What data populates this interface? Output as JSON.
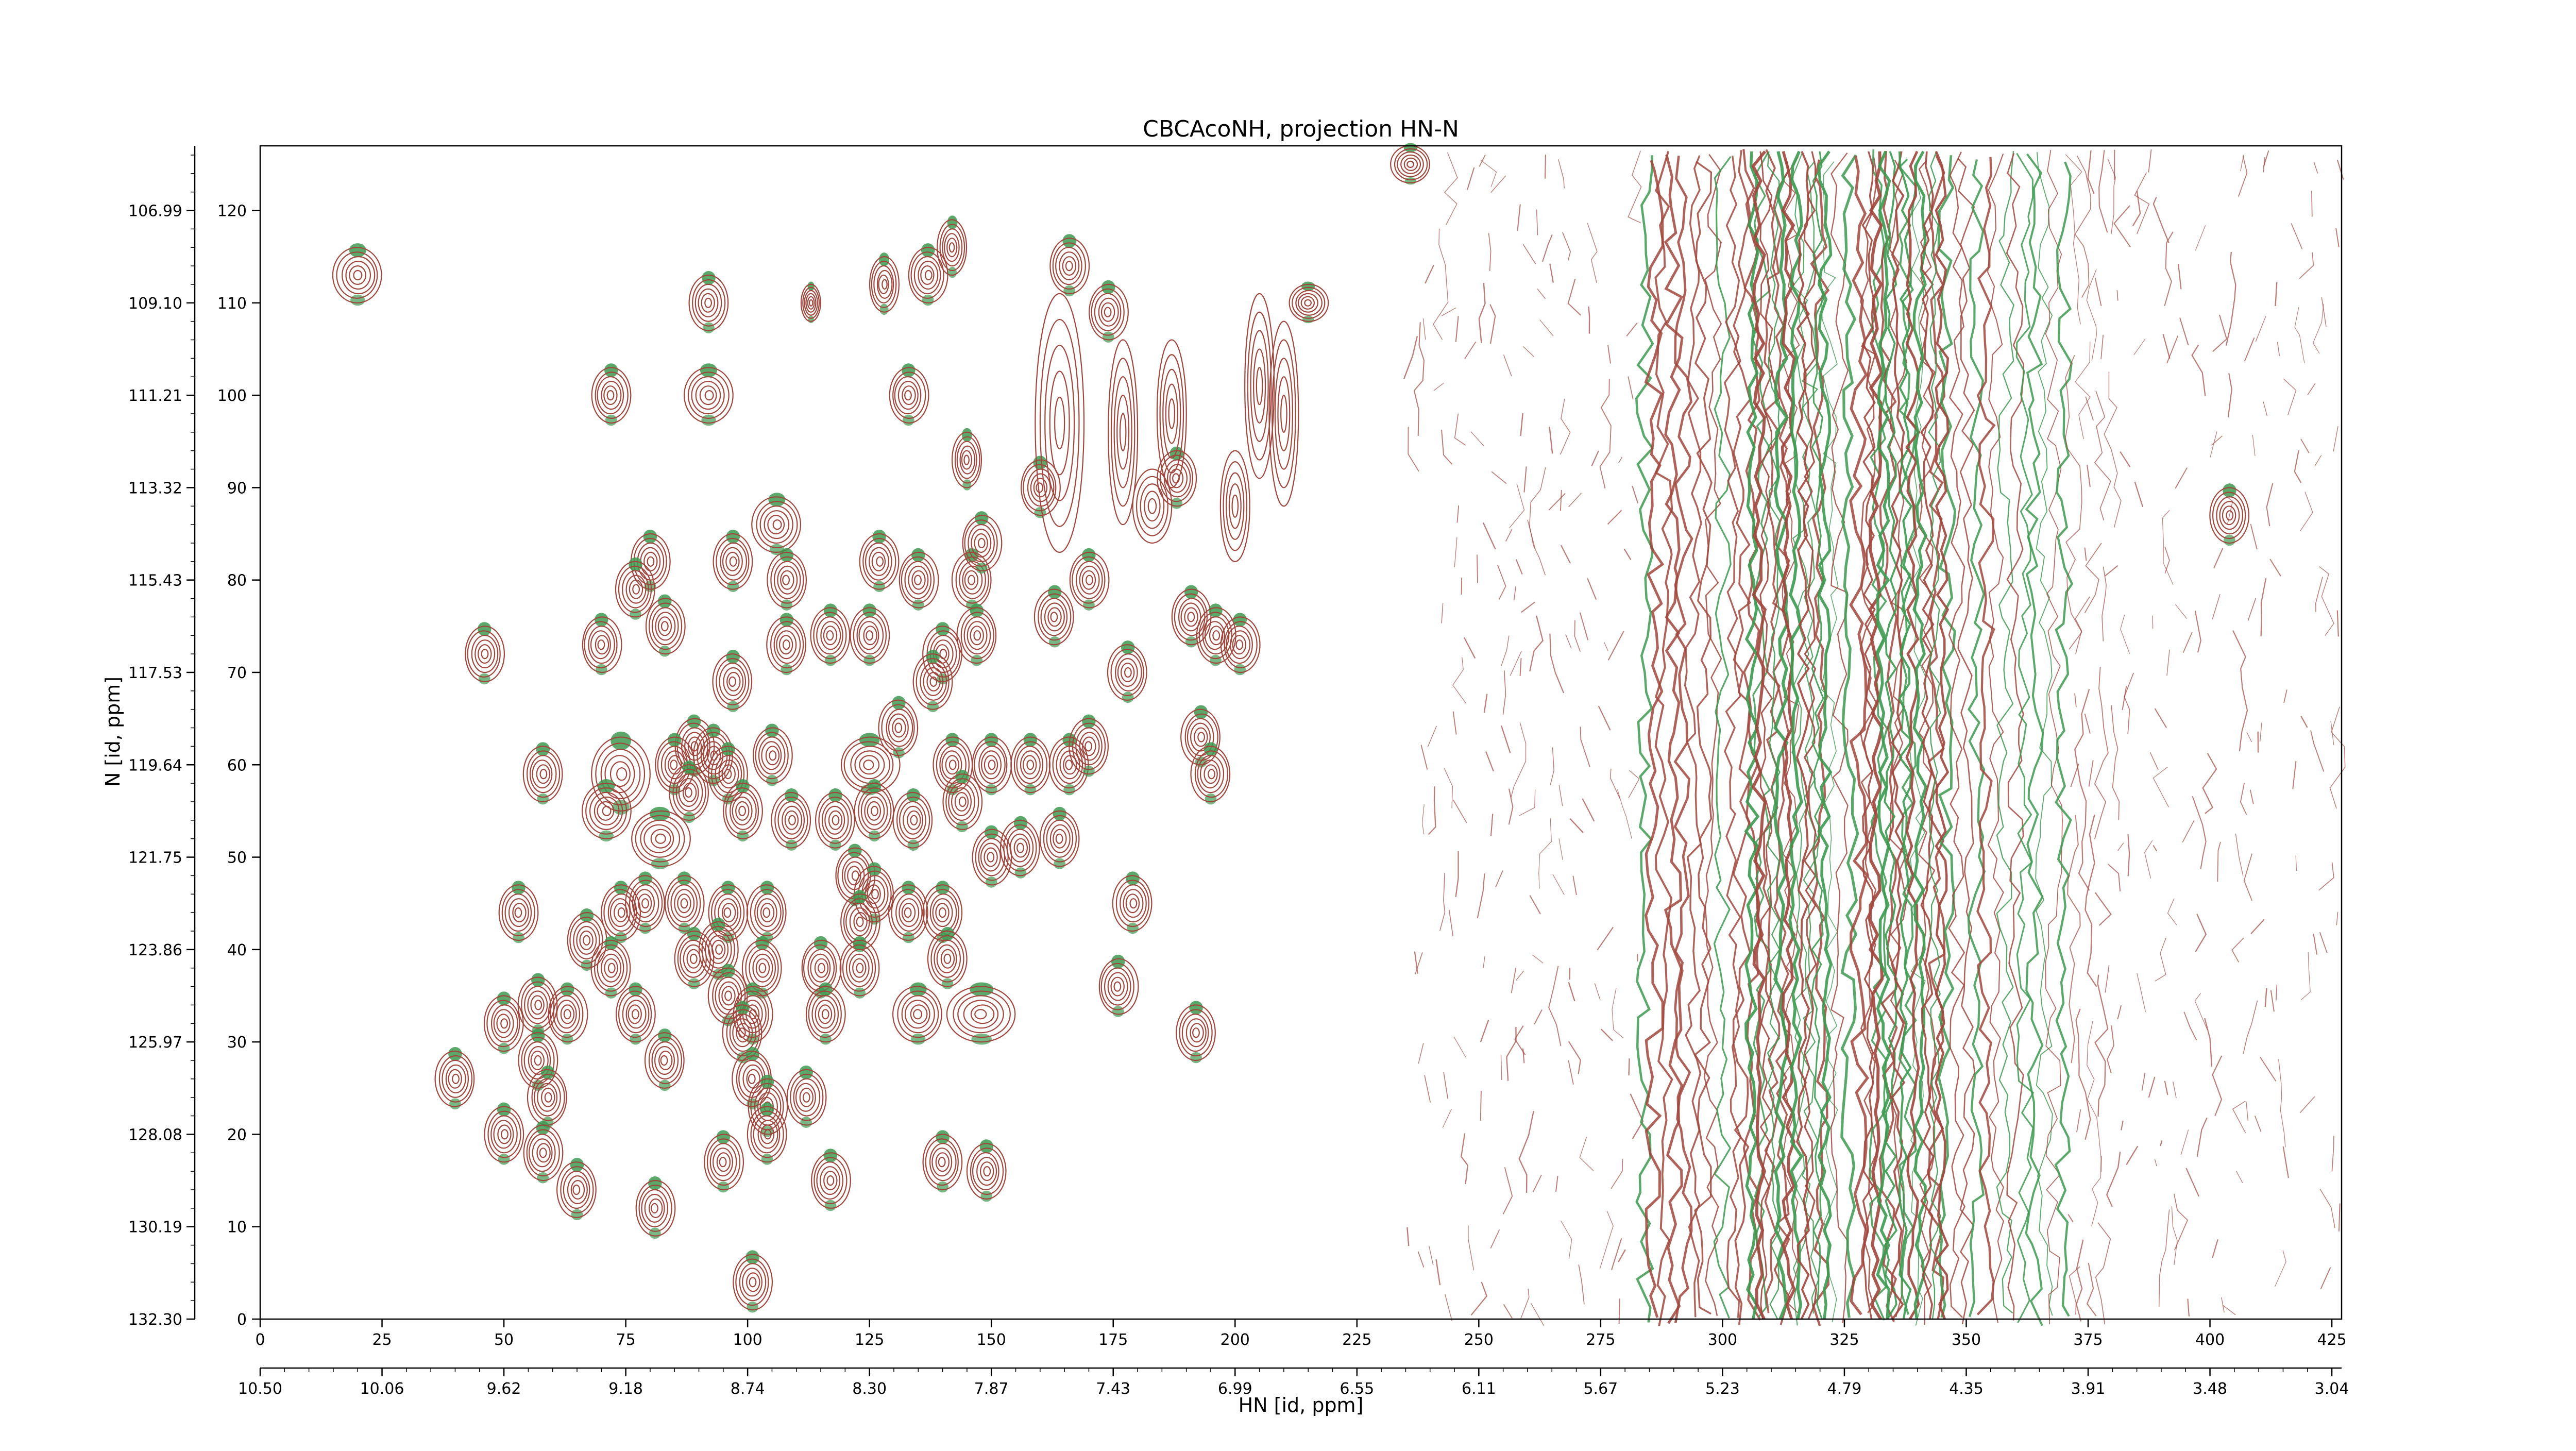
{
  "chart_data": {
    "type": "contour",
    "title": "CBCAcoNH, projection HN-N",
    "xlabel": "HN [id, ppm]",
    "ylabel": "N [id, ppm]",
    "x_index_range": [
      0,
      427
    ],
    "y_index_range": [
      0,
      127
    ],
    "x_index_ticks": [
      "0",
      "25",
      "50",
      "75",
      "100",
      "125",
      "150",
      "175",
      "200",
      "225",
      "250",
      "275",
      "300",
      "325",
      "350",
      "375",
      "400",
      "425"
    ],
    "x_ppm_ticks": [
      "10.50",
      "10.06",
      "9.62",
      "9.18",
      "8.74",
      "8.30",
      "7.87",
      "7.43",
      "6.99",
      "6.55",
      "6.11",
      "5.67",
      "5.23",
      "4.79",
      "4.35",
      "3.91",
      "3.48",
      "3.04"
    ],
    "y_index_ticks": [
      "0",
      "10",
      "20",
      "30",
      "40",
      "50",
      "60",
      "70",
      "80",
      "90",
      "100",
      "110",
      "120"
    ],
    "y_ppm_ticks": [
      "132.30",
      "130.19",
      "128.08",
      "125.97",
      "123.86",
      "121.75",
      "119.64",
      "117.53",
      "115.43",
      "113.32",
      "111.21",
      "109.10",
      "106.99"
    ],
    "series": [
      {
        "color": "#a0463c"
      },
      {
        "color": "#3d9a50"
      }
    ],
    "peaks": [
      [
        20,
        113,
        5,
        3
      ],
      [
        92,
        110,
        4,
        3
      ],
      [
        72,
        100,
        4,
        3
      ],
      [
        92,
        100,
        5,
        3
      ],
      [
        133,
        100,
        4,
        3
      ],
      [
        145,
        93,
        3,
        3
      ],
      [
        160,
        90,
        4,
        3
      ],
      [
        188,
        91,
        4,
        3
      ],
      [
        137,
        113,
        4,
        3
      ],
      [
        142,
        116,
        3,
        3
      ],
      [
        128,
        112,
        3,
        3
      ],
      [
        166,
        114,
        4,
        3
      ],
      [
        174,
        109,
        4,
        3
      ],
      [
        113,
        110,
        2,
        2
      ],
      [
        215,
        110,
        4,
        2
      ],
      [
        236,
        125,
        4,
        2
      ],
      [
        80,
        82,
        4,
        3
      ],
      [
        77,
        79,
        4,
        3
      ],
      [
        97,
        82,
        4,
        3
      ],
      [
        106,
        86,
        5,
        3
      ],
      [
        108,
        80,
        4,
        3
      ],
      [
        127,
        82,
        4,
        3
      ],
      [
        135,
        80,
        4,
        3
      ],
      [
        146,
        80,
        4,
        3
      ],
      [
        148,
        84,
        4,
        3
      ],
      [
        170,
        80,
        4,
        3
      ],
      [
        163,
        76,
        4,
        3
      ],
      [
        46,
        72,
        4,
        3
      ],
      [
        70,
        73,
        4,
        3
      ],
      [
        83,
        75,
        4,
        3
      ],
      [
        97,
        69,
        4,
        3
      ],
      [
        108,
        73,
        4,
        3
      ],
      [
        117,
        74,
        4,
        3
      ],
      [
        125,
        74,
        4,
        3
      ],
      [
        140,
        72,
        4,
        3
      ],
      [
        147,
        74,
        4,
        3
      ],
      [
        138,
        69,
        4,
        3
      ],
      [
        178,
        70,
        4,
        3
      ],
      [
        191,
        76,
        4,
        3
      ],
      [
        196,
        74,
        4,
        3
      ],
      [
        201,
        73,
        4,
        3
      ],
      [
        131,
        64,
        4,
        3
      ],
      [
        89,
        62,
        4,
        3
      ],
      [
        93,
        61,
        4,
        3
      ],
      [
        58,
        59,
        4,
        3
      ],
      [
        74,
        59,
        6,
        4
      ],
      [
        85,
        60,
        4,
        3
      ],
      [
        96,
        59,
        4,
        3
      ],
      [
        105,
        61,
        4,
        3
      ],
      [
        125,
        60,
        6,
        3
      ],
      [
        142,
        60,
        4,
        3
      ],
      [
        150,
        60,
        4,
        3
      ],
      [
        158,
        60,
        4,
        3
      ],
      [
        166,
        60,
        4,
        3
      ],
      [
        170,
        62,
        4,
        3
      ],
      [
        193,
        63,
        4,
        3
      ],
      [
        195,
        59,
        4,
        3
      ],
      [
        71,
        55,
        5,
        3
      ],
      [
        82,
        52,
        6,
        3
      ],
      [
        88,
        57,
        4,
        3
      ],
      [
        99,
        55,
        4,
        3
      ],
      [
        109,
        54,
        4,
        3
      ],
      [
        118,
        54,
        4,
        3
      ],
      [
        126,
        55,
        4,
        3
      ],
      [
        134,
        54,
        4,
        3
      ],
      [
        144,
        56,
        4,
        3
      ],
      [
        150,
        50,
        4,
        3
      ],
      [
        156,
        51,
        4,
        3
      ],
      [
        164,
        52,
        4,
        3
      ],
      [
        122,
        48,
        4,
        3
      ],
      [
        126,
        46,
        4,
        3
      ],
      [
        53,
        44,
        4,
        3
      ],
      [
        74,
        44,
        4,
        3
      ],
      [
        79,
        45,
        4,
        3
      ],
      [
        87,
        45,
        4,
        3
      ],
      [
        96,
        44,
        4,
        3
      ],
      [
        104,
        44,
        4,
        3
      ],
      [
        123,
        43,
        4,
        3
      ],
      [
        133,
        44,
        4,
        3
      ],
      [
        140,
        44,
        4,
        3
      ],
      [
        179,
        45,
        4,
        3
      ],
      [
        67,
        41,
        4,
        3
      ],
      [
        72,
        38,
        4,
        3
      ],
      [
        89,
        39,
        4,
        3
      ],
      [
        94,
        40,
        4,
        3
      ],
      [
        103,
        38,
        4,
        3
      ],
      [
        115,
        38,
        4,
        3
      ],
      [
        123,
        38,
        4,
        3
      ],
      [
        141,
        39,
        4,
        3
      ],
      [
        176,
        36,
        4,
        3
      ],
      [
        96,
        35,
        4,
        3
      ],
      [
        101,
        33,
        4,
        3
      ],
      [
        50,
        32,
        4,
        3
      ],
      [
        57,
        34,
        4,
        3
      ],
      [
        63,
        33,
        4,
        3
      ],
      [
        77,
        33,
        4,
        3
      ],
      [
        116,
        33,
        4,
        3
      ],
      [
        135,
        33,
        5,
        3
      ],
      [
        148,
        33,
        7,
        3
      ],
      [
        192,
        31,
        4,
        3
      ],
      [
        99,
        31,
        4,
        3
      ],
      [
        83,
        28,
        4,
        3
      ],
      [
        57,
        28,
        4,
        3
      ],
      [
        40,
        26,
        4,
        3
      ],
      [
        59,
        24,
        4,
        3
      ],
      [
        101,
        26,
        4,
        3
      ],
      [
        104,
        23,
        4,
        3
      ],
      [
        112,
        24,
        4,
        3
      ],
      [
        50,
        20,
        4,
        3
      ],
      [
        58,
        18,
        4,
        3
      ],
      [
        104,
        20,
        4,
        3
      ],
      [
        95,
        17,
        4,
        3
      ],
      [
        117,
        15,
        4,
        3
      ],
      [
        65,
        14,
        4,
        3
      ],
      [
        81,
        12,
        4,
        3
      ],
      [
        140,
        17,
        4,
        3
      ],
      [
        149,
        16,
        4,
        3
      ],
      [
        101,
        4,
        4,
        3
      ],
      [
        404,
        87,
        4,
        3
      ]
    ],
    "streaks": [
      [
        164,
        97,
        5,
        14
      ],
      [
        177,
        96,
        3,
        10
      ],
      [
        205,
        101,
        3,
        10
      ],
      [
        210,
        98,
        3,
        10
      ],
      [
        187,
        98,
        3,
        8
      ],
      [
        200,
        88,
        3,
        6
      ],
      [
        183,
        88,
        4,
        4
      ]
    ]
  }
}
